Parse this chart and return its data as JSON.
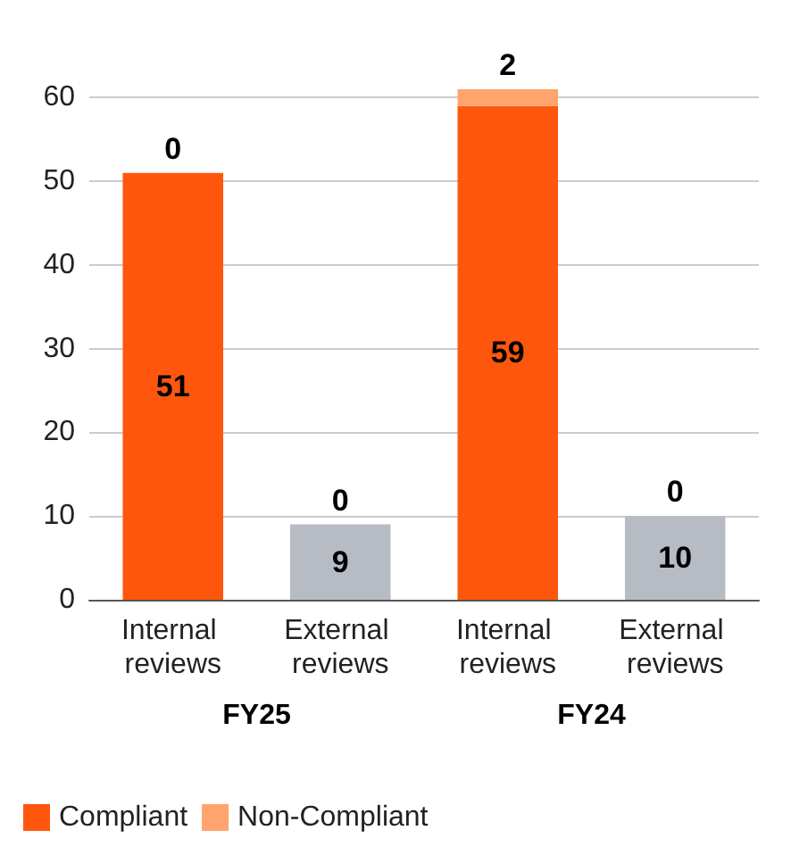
{
  "chart_data": {
    "type": "bar",
    "stacked": true,
    "categories": [
      "Internal reviews",
      "External reviews",
      "Internal reviews",
      "External reviews"
    ],
    "series": [
      {
        "name": "Compliant",
        "color": "#ff560d",
        "colors": [
          "#ff560d",
          "#b6bbc4",
          "#ff560d",
          "#b6bbc4"
        ],
        "values": [
          51,
          9,
          59,
          10
        ]
      },
      {
        "name": "Non-Compliant",
        "color": "#ffa46d",
        "values": [
          0,
          0,
          2,
          0
        ]
      }
    ],
    "ylim": [
      0,
      61
    ],
    "yticks": [
      0,
      10,
      20,
      30,
      40,
      50,
      60
    ],
    "grid": "y",
    "data_labels": true,
    "legend": "bottom left",
    "annotations": [
      "FY25",
      "FY24"
    ]
  }
}
